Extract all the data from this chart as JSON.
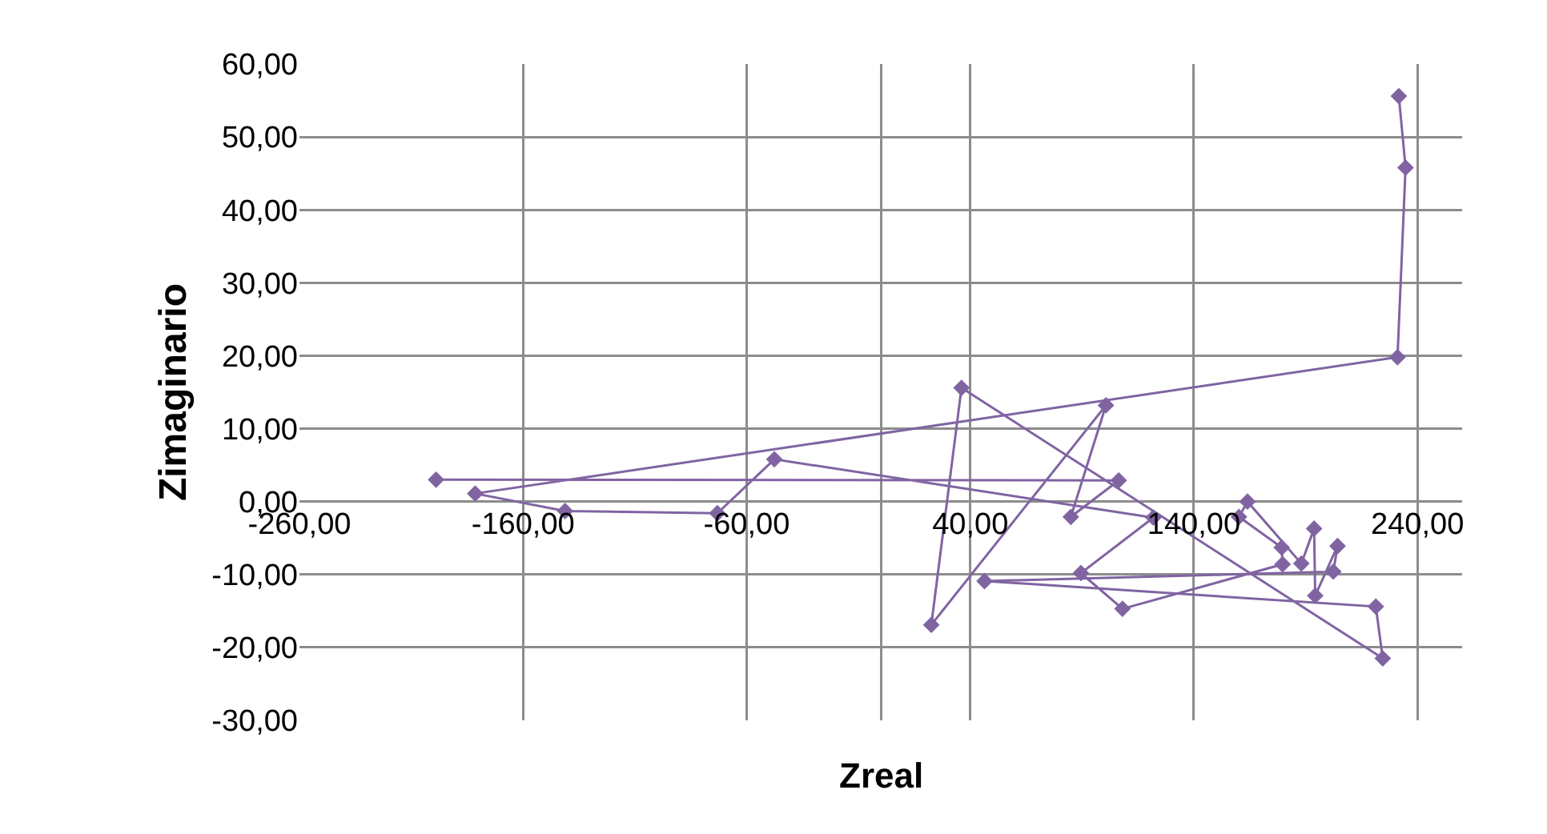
{
  "chart_data": {
    "type": "line",
    "xlabel": "Zreal",
    "ylabel": "Zimaginario",
    "x": [
      231.7,
      234.7,
      231.1,
      -181.4,
      -141.2,
      -73.1,
      -47.6,
      121.9,
      89.5,
      108.1,
      179.7,
      179.3,
      160.2,
      164.0,
      188.1,
      193.8,
      194.3,
      204.3,
      202.4,
      46.4,
      221.4,
      224.5,
      36.1,
      22.6,
      100.7,
      85.0,
      106.4,
      -198.9
    ],
    "series": [
      {
        "color": "#8064a2",
        "values": [
          55.6,
          45.8,
          19.8,
          1.1,
          -1.3,
          -1.6,
          5.8,
          -2.2,
          -9.8,
          -14.7,
          -8.6,
          -6.3,
          -2.1,
          0.0,
          -8.5,
          -3.7,
          -12.9,
          -6.1,
          -9.6,
          -10.9,
          -14.4,
          -21.5,
          15.6,
          -16.9,
          13.2,
          -2.1,
          2.9,
          3.0
        ]
      }
    ],
    "xlim": [
      -260,
      260
    ],
    "ylim": [
      -30,
      60
    ],
    "xticks": [
      {
        "value": -260,
        "label": "-260,00"
      },
      {
        "value": -160,
        "label": "-160,00"
      },
      {
        "value": -60,
        "label": "-60,00"
      },
      {
        "value": 40,
        "label": "40,00"
      },
      {
        "value": 140,
        "label": "140,00"
      },
      {
        "value": 240,
        "label": "240,00"
      }
    ],
    "yticks": [
      {
        "value": -30,
        "label": "-30,00"
      },
      {
        "value": -20,
        "label": "-20,00"
      },
      {
        "value": -10,
        "label": "-10,00"
      },
      {
        "value": 0,
        "label": "0,00"
      },
      {
        "value": 10,
        "label": "10,00"
      },
      {
        "value": 20,
        "label": "20,00"
      },
      {
        "value": 30,
        "label": "30,00"
      },
      {
        "value": 40,
        "label": "40,00"
      },
      {
        "value": 50,
        "label": "50,00"
      },
      {
        "value": 60,
        "label": "60,00"
      }
    ],
    "grid": true,
    "marker": "diamond"
  }
}
